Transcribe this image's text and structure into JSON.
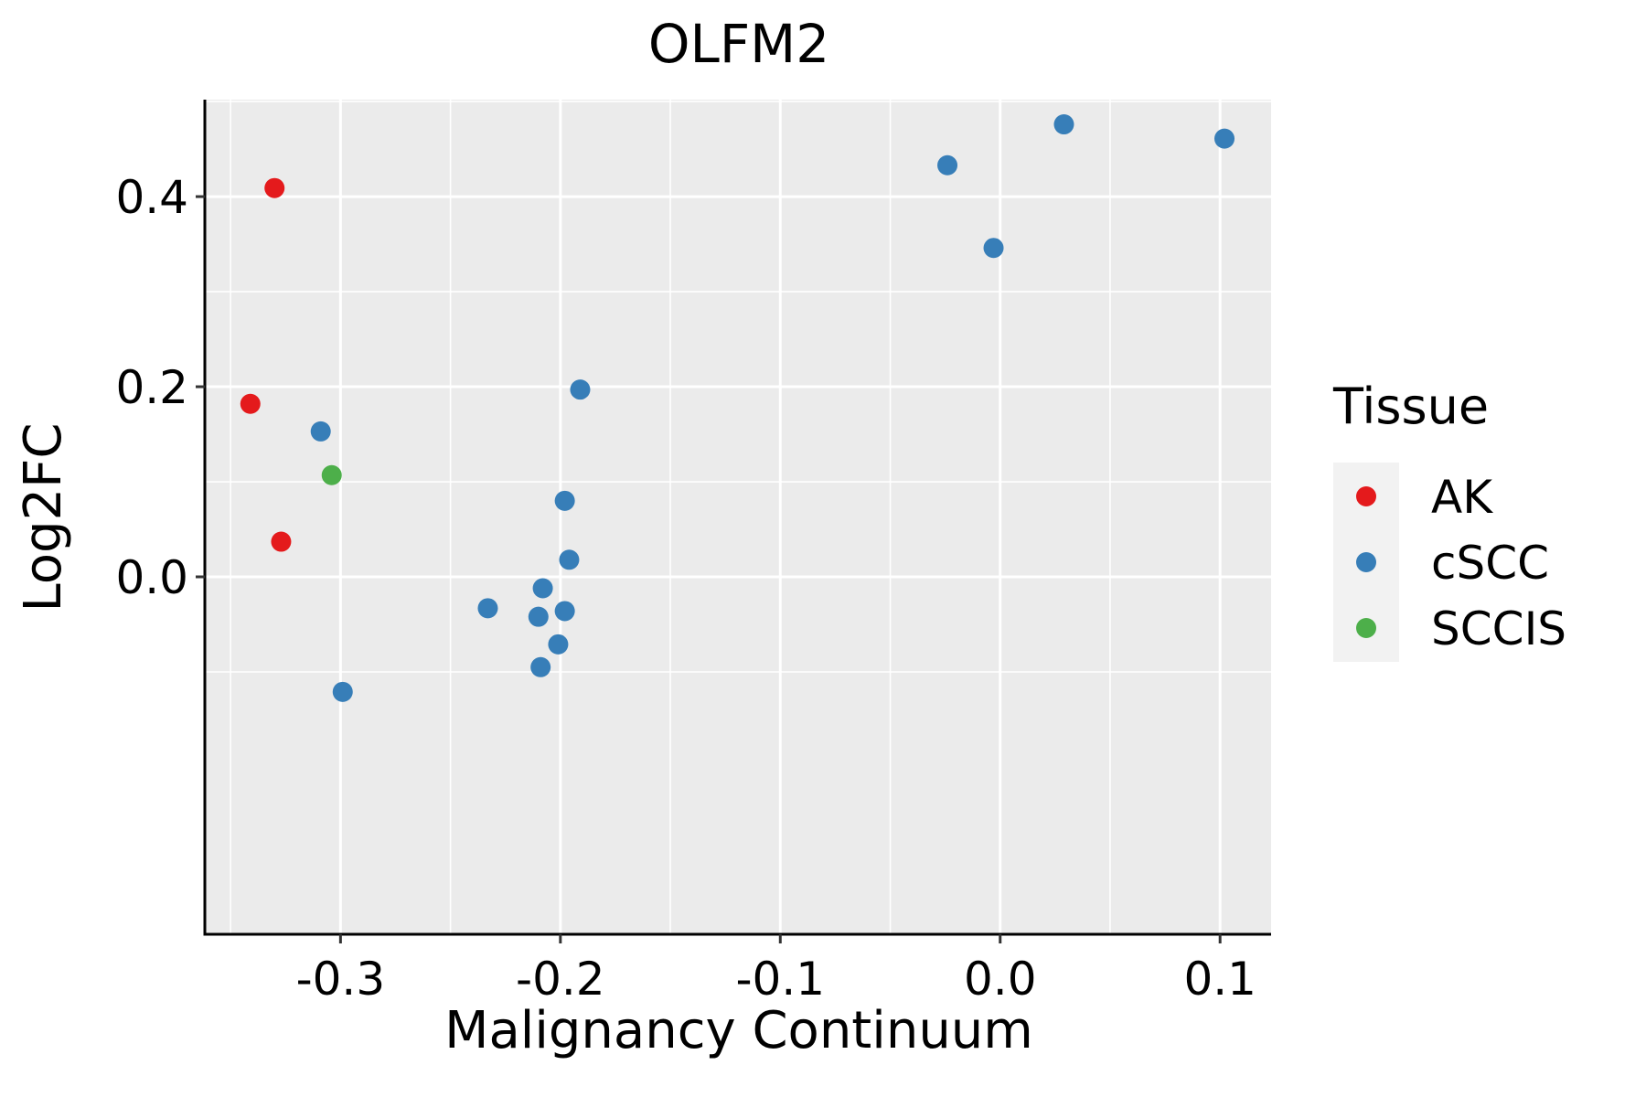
{
  "chart_data": {
    "type": "scatter",
    "title": "OLFM2",
    "xlabel": "Malignancy Continuum",
    "ylabel": "Log2FC",
    "xlim": [
      -0.3617,
      0.1232
    ],
    "ylim": [
      -0.376,
      0.502
    ],
    "x_ticks": [
      -0.3,
      -0.2,
      -0.1,
      0.0,
      0.1
    ],
    "x_tick_labels": [
      "-0.3",
      "-0.2",
      "-0.1",
      "0.0",
      "0.1"
    ],
    "y_ticks": [
      0.0,
      0.2,
      0.4
    ],
    "y_tick_labels": [
      "0.0",
      "0.2",
      "0.4"
    ],
    "grid": true,
    "legend": {
      "title": "Tissue",
      "position": "right",
      "entries": [
        {
          "label": "AK",
          "color": "#E41A1C"
        },
        {
          "label": "cSCC",
          "color": "#377EB8"
        },
        {
          "label": "SCCIS",
          "color": "#4DAF4A"
        }
      ]
    },
    "series": [
      {
        "name": "AK",
        "color": "#E41A1C",
        "points": [
          [
            -0.33,
            0.409
          ],
          [
            -0.341,
            0.182
          ],
          [
            -0.327,
            0.037
          ]
        ]
      },
      {
        "name": "cSCC",
        "color": "#377EB8",
        "points": [
          [
            0.029,
            0.476
          ],
          [
            0.102,
            0.461
          ],
          [
            -0.024,
            0.433
          ],
          [
            -0.003,
            0.346
          ],
          [
            -0.191,
            0.197
          ],
          [
            -0.309,
            0.153
          ],
          [
            -0.198,
            0.08
          ],
          [
            -0.196,
            0.018
          ],
          [
            -0.208,
            -0.012
          ],
          [
            -0.233,
            -0.033
          ],
          [
            -0.198,
            -0.036
          ],
          [
            -0.21,
            -0.042
          ],
          [
            -0.201,
            -0.071
          ],
          [
            -0.209,
            -0.095
          ],
          [
            -0.299,
            -0.121
          ]
        ]
      },
      {
        "name": "SCCIS",
        "color": "#4DAF4A",
        "points": [
          [
            -0.304,
            0.107
          ]
        ]
      }
    ]
  },
  "colors": {
    "panel_background": "#EBEBEB",
    "grid": "#FFFFFF",
    "legend_key_background": "#F2F2F2"
  }
}
